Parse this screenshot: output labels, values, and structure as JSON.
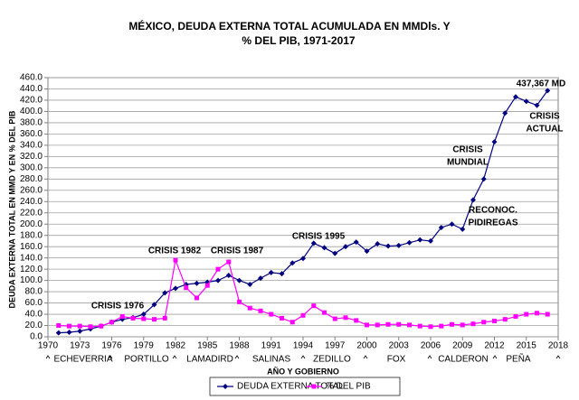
{
  "chart_data": {
    "type": "line",
    "title": [
      "MÉXICO, DEUDA EXTERNA TOTAL ACUMULADA EN MMDls. Y",
      "% DEL PIB,  1971-2017"
    ],
    "y_label": "DEUDA EXTERNA TOTAL EN MMD Y EN % DEL PIB",
    "x_label": "AÑO Y GOBIERNO",
    "x": [
      1971,
      1972,
      1973,
      1974,
      1975,
      1976,
      1977,
      1978,
      1979,
      1980,
      1981,
      1982,
      1983,
      1984,
      1985,
      1986,
      1987,
      1988,
      1989,
      1990,
      1991,
      1992,
      1993,
      1994,
      1995,
      1996,
      1997,
      1998,
      1999,
      2000,
      2001,
      2002,
      2003,
      2004,
      2005,
      2006,
      2007,
      2008,
      2009,
      2010,
      2011,
      2012,
      2013,
      2014,
      2015,
      2016,
      2017
    ],
    "series": [
      {
        "name": "DEUDA EXTERNA TOTAL",
        "color": "#000080",
        "marker": "diamond",
        "values": [
          7,
          8,
          10,
          14,
          19,
          26,
          31,
          34,
          40,
          57,
          78,
          86,
          93,
          95,
          97,
          100,
          109,
          100,
          93,
          104,
          114,
          112,
          131,
          139,
          166,
          158,
          148,
          160,
          168,
          152,
          165,
          161,
          162,
          167,
          172,
          170,
          194,
          200,
          191,
          243,
          280,
          346,
          397,
          426,
          418,
          411,
          437
        ]
      },
      {
        "name": "% DEL PIB",
        "color": "#ff00ff",
        "marker": "square",
        "values": [
          20,
          19,
          19,
          18,
          19,
          26,
          36,
          33,
          32,
          31,
          33,
          136,
          87,
          69,
          91,
          120,
          133,
          62,
          51,
          46,
          40,
          33,
          26,
          38,
          55,
          43,
          32,
          34,
          29,
          21,
          21,
          22,
          22,
          21,
          19,
          18,
          19,
          22,
          21,
          23,
          26,
          28,
          31,
          36,
          40,
          42,
          40
        ]
      }
    ],
    "xlim": [
      1970,
      2018
    ],
    "xticks": [
      1970,
      1973,
      1976,
      1979,
      1982,
      1985,
      1988,
      1991,
      1994,
      1997,
      2000,
      2003,
      2006,
      2009,
      2012,
      2015,
      2018
    ],
    "ylim": [
      0,
      460
    ],
    "yticks": [
      {
        "value": 0,
        "label": "0.0"
      },
      {
        "value": 20,
        "label": "20.0"
      },
      {
        "value": 40,
        "label": "40.0"
      },
      {
        "value": 60,
        "label": "60.0"
      },
      {
        "value": 80,
        "label": "80.0"
      },
      {
        "value": 100,
        "label": "100.0"
      },
      {
        "value": 120,
        "label": "120.0"
      },
      {
        "value": 140,
        "label": "140.0"
      },
      {
        "value": 160,
        "label": "160.0"
      },
      {
        "value": 180,
        "label": "180.0"
      },
      {
        "value": 200,
        "label": "200.0"
      },
      {
        "value": 220,
        "label": "220.0"
      },
      {
        "value": 240,
        "label": "240.0"
      },
      {
        "value": 260,
        "label": "260.0"
      },
      {
        "value": 280,
        "label": "280.0"
      },
      {
        "value": 300,
        "label": "300.0"
      },
      {
        "value": 320,
        "label": "320.0"
      },
      {
        "value": 340,
        "label": "340.0"
      },
      {
        "value": 360,
        "label": "360.0"
      },
      {
        "value": 380,
        "label": "380.0"
      },
      {
        "value": 400,
        "label": "400.0"
      },
      {
        "value": 420,
        "label": "420.0"
      },
      {
        "value": 440,
        "label": "440.0"
      },
      {
        "value": 460,
        "label": "460.0"
      }
    ],
    "grid": true,
    "legend": "bottom",
    "annotations": [
      [
        "CRISIS 1976"
      ],
      [
        "CRISIS 1982"
      ],
      [
        "CRISIS 1987"
      ],
      [
        "CRISIS 1995"
      ],
      [
        "RECONOC.",
        "PIDIREGAS"
      ],
      [
        "CRISIS",
        "MUNDIAL"
      ],
      [
        "CRISIS",
        "ACTUAL"
      ],
      [
        "437,367 MD"
      ]
    ],
    "governments": [
      "ECHEVERRIA",
      "PORTILLO",
      "LAMADIRD",
      "SALINAS",
      "ZEDILLO",
      "FOX",
      "CALDERON",
      "PEÑA"
    ]
  }
}
